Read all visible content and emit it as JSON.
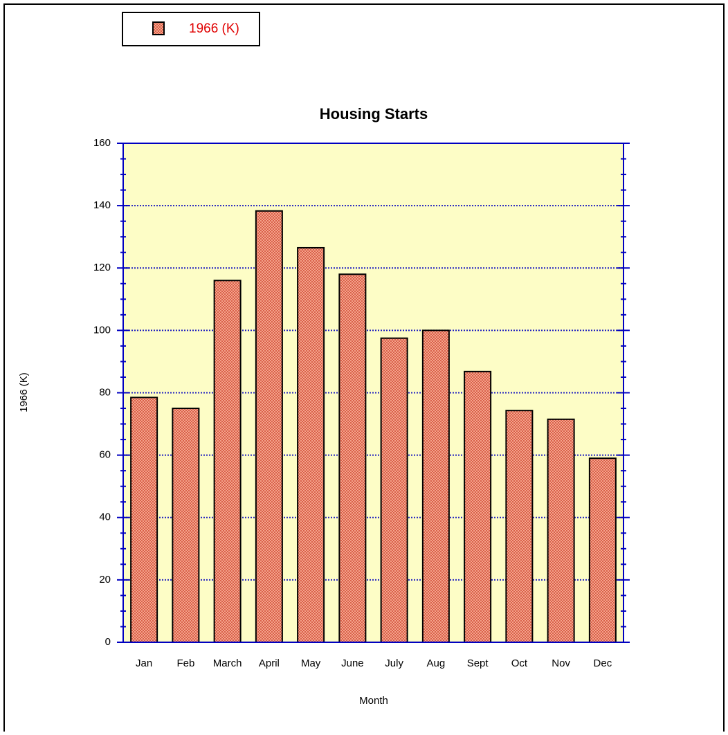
{
  "chart_data": {
    "type": "bar",
    "title": "Housing Starts",
    "x_label": "Month",
    "y_label": "1966 (K)",
    "categories": [
      "Jan",
      "Feb",
      "March",
      "April",
      "May",
      "June",
      "July",
      "Aug",
      "Sept",
      "Oct",
      "Nov",
      "Dec"
    ],
    "series": [
      {
        "name": "1966 (K)",
        "color": "#e8866c",
        "values": [
          78.5,
          75,
          116,
          138.3,
          126.5,
          118,
          97.5,
          100,
          86.8,
          74.3,
          71.5,
          59
        ]
      }
    ],
    "ylim": [
      0,
      160
    ],
    "yticks": [
      0,
      20,
      40,
      60,
      80,
      100,
      120,
      140,
      160
    ],
    "grid": true,
    "legend": "top-left"
  }
}
